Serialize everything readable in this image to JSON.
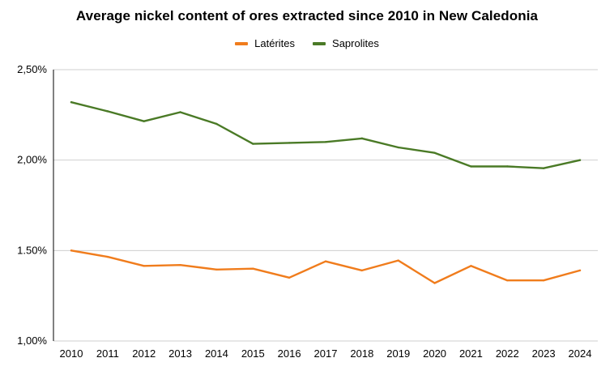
{
  "chart_data": {
    "type": "line",
    "title": "Average nickel content of ores extracted since 2010 in New Caledonia",
    "xlabel": "",
    "ylabel": "",
    "x": [
      "2010",
      "2011",
      "2012",
      "2013",
      "2014",
      "2015",
      "2016",
      "2017",
      "2018",
      "2019",
      "2020",
      "2021",
      "2022",
      "2023",
      "2024"
    ],
    "ylim": [
      1.0,
      2.5
    ],
    "yticks": [
      1.0,
      1.5,
      2.0,
      2.5
    ],
    "ytick_labels": [
      "1,00%",
      "1.50%",
      "2,00%",
      "2,50%"
    ],
    "grid": "horizontal",
    "legend_position": "top",
    "series": [
      {
        "name": "Latérites",
        "color": "#f07c1c",
        "values": [
          1.5,
          1.465,
          1.415,
          1.42,
          1.395,
          1.4,
          1.35,
          1.44,
          1.39,
          1.445,
          1.32,
          1.415,
          1.335,
          1.335,
          1.39
        ]
      },
      {
        "name": "Saprolites",
        "color": "#4a7a26",
        "values": [
          2.32,
          2.27,
          2.215,
          2.265,
          2.2,
          2.09,
          2.095,
          2.1,
          2.12,
          2.07,
          2.04,
          1.965,
          1.965,
          1.955,
          2.0
        ]
      }
    ]
  }
}
